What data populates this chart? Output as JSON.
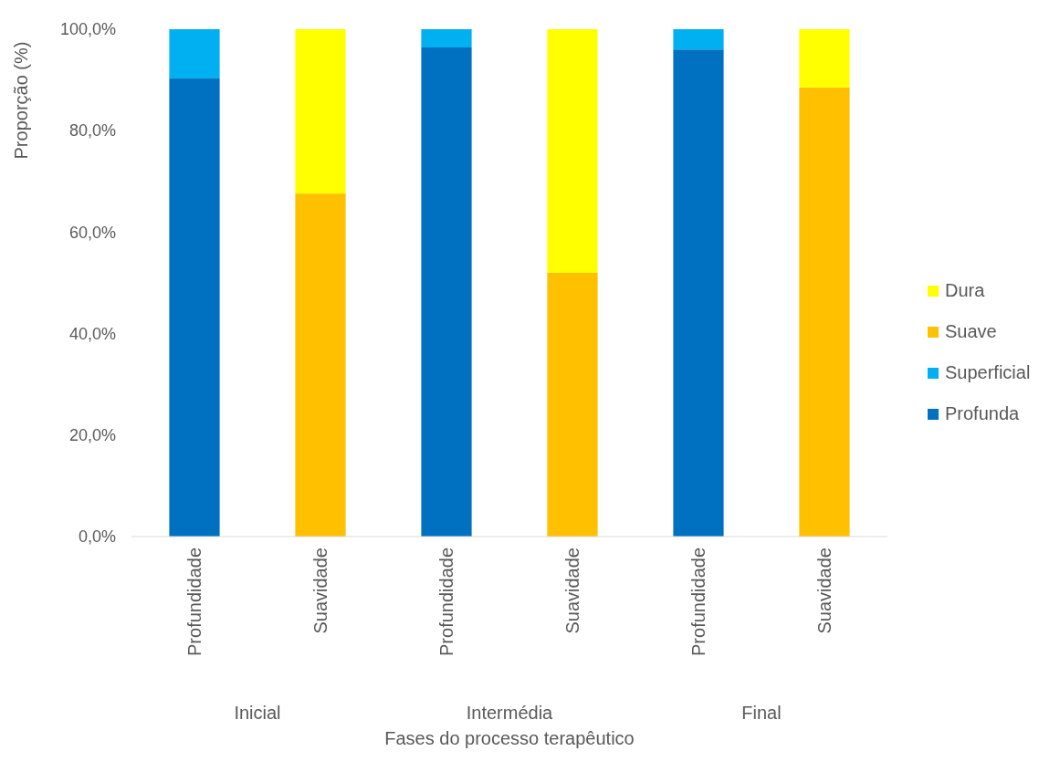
{
  "chart_data": {
    "type": "bar",
    "stacked": true,
    "xlabel": "Fases do processo terapêutico",
    "ylabel": "Proporção (%)",
    "categories": [
      "Profundidade",
      "Suavidade",
      "Profundidade",
      "Suavidade",
      "Profundidade",
      "Suavidade"
    ],
    "annotations": [
      "Inicial",
      "Intermédia",
      "Final"
    ],
    "series": [
      {
        "name": "Profunda",
        "color": "#0070c0",
        "values": [
          90.3,
          null,
          96.4,
          null,
          96.0,
          null
        ]
      },
      {
        "name": "Superficial",
        "color": "#00b0f0",
        "values": [
          9.7,
          null,
          3.6,
          null,
          4.0,
          null
        ]
      },
      {
        "name": "Suave",
        "color": "#ffc000",
        "values": [
          null,
          67.6,
          null,
          52.0,
          null,
          88.5
        ]
      },
      {
        "name": "Dura",
        "color": "#ffff00",
        "values": [
          null,
          32.4,
          null,
          48.0,
          null,
          11.5
        ]
      }
    ],
    "ylim": [
      0,
      100
    ],
    "yticks": [
      {
        "value": 0,
        "label": "0,0%"
      },
      {
        "value": 20,
        "label": "20,0%"
      },
      {
        "value": 40,
        "label": "40,0%"
      },
      {
        "value": 60,
        "label": "60,0%"
      },
      {
        "value": 80,
        "label": "80,0%"
      },
      {
        "value": 100,
        "label": "100,0%"
      }
    ],
    "grid": false,
    "legend": "right"
  }
}
